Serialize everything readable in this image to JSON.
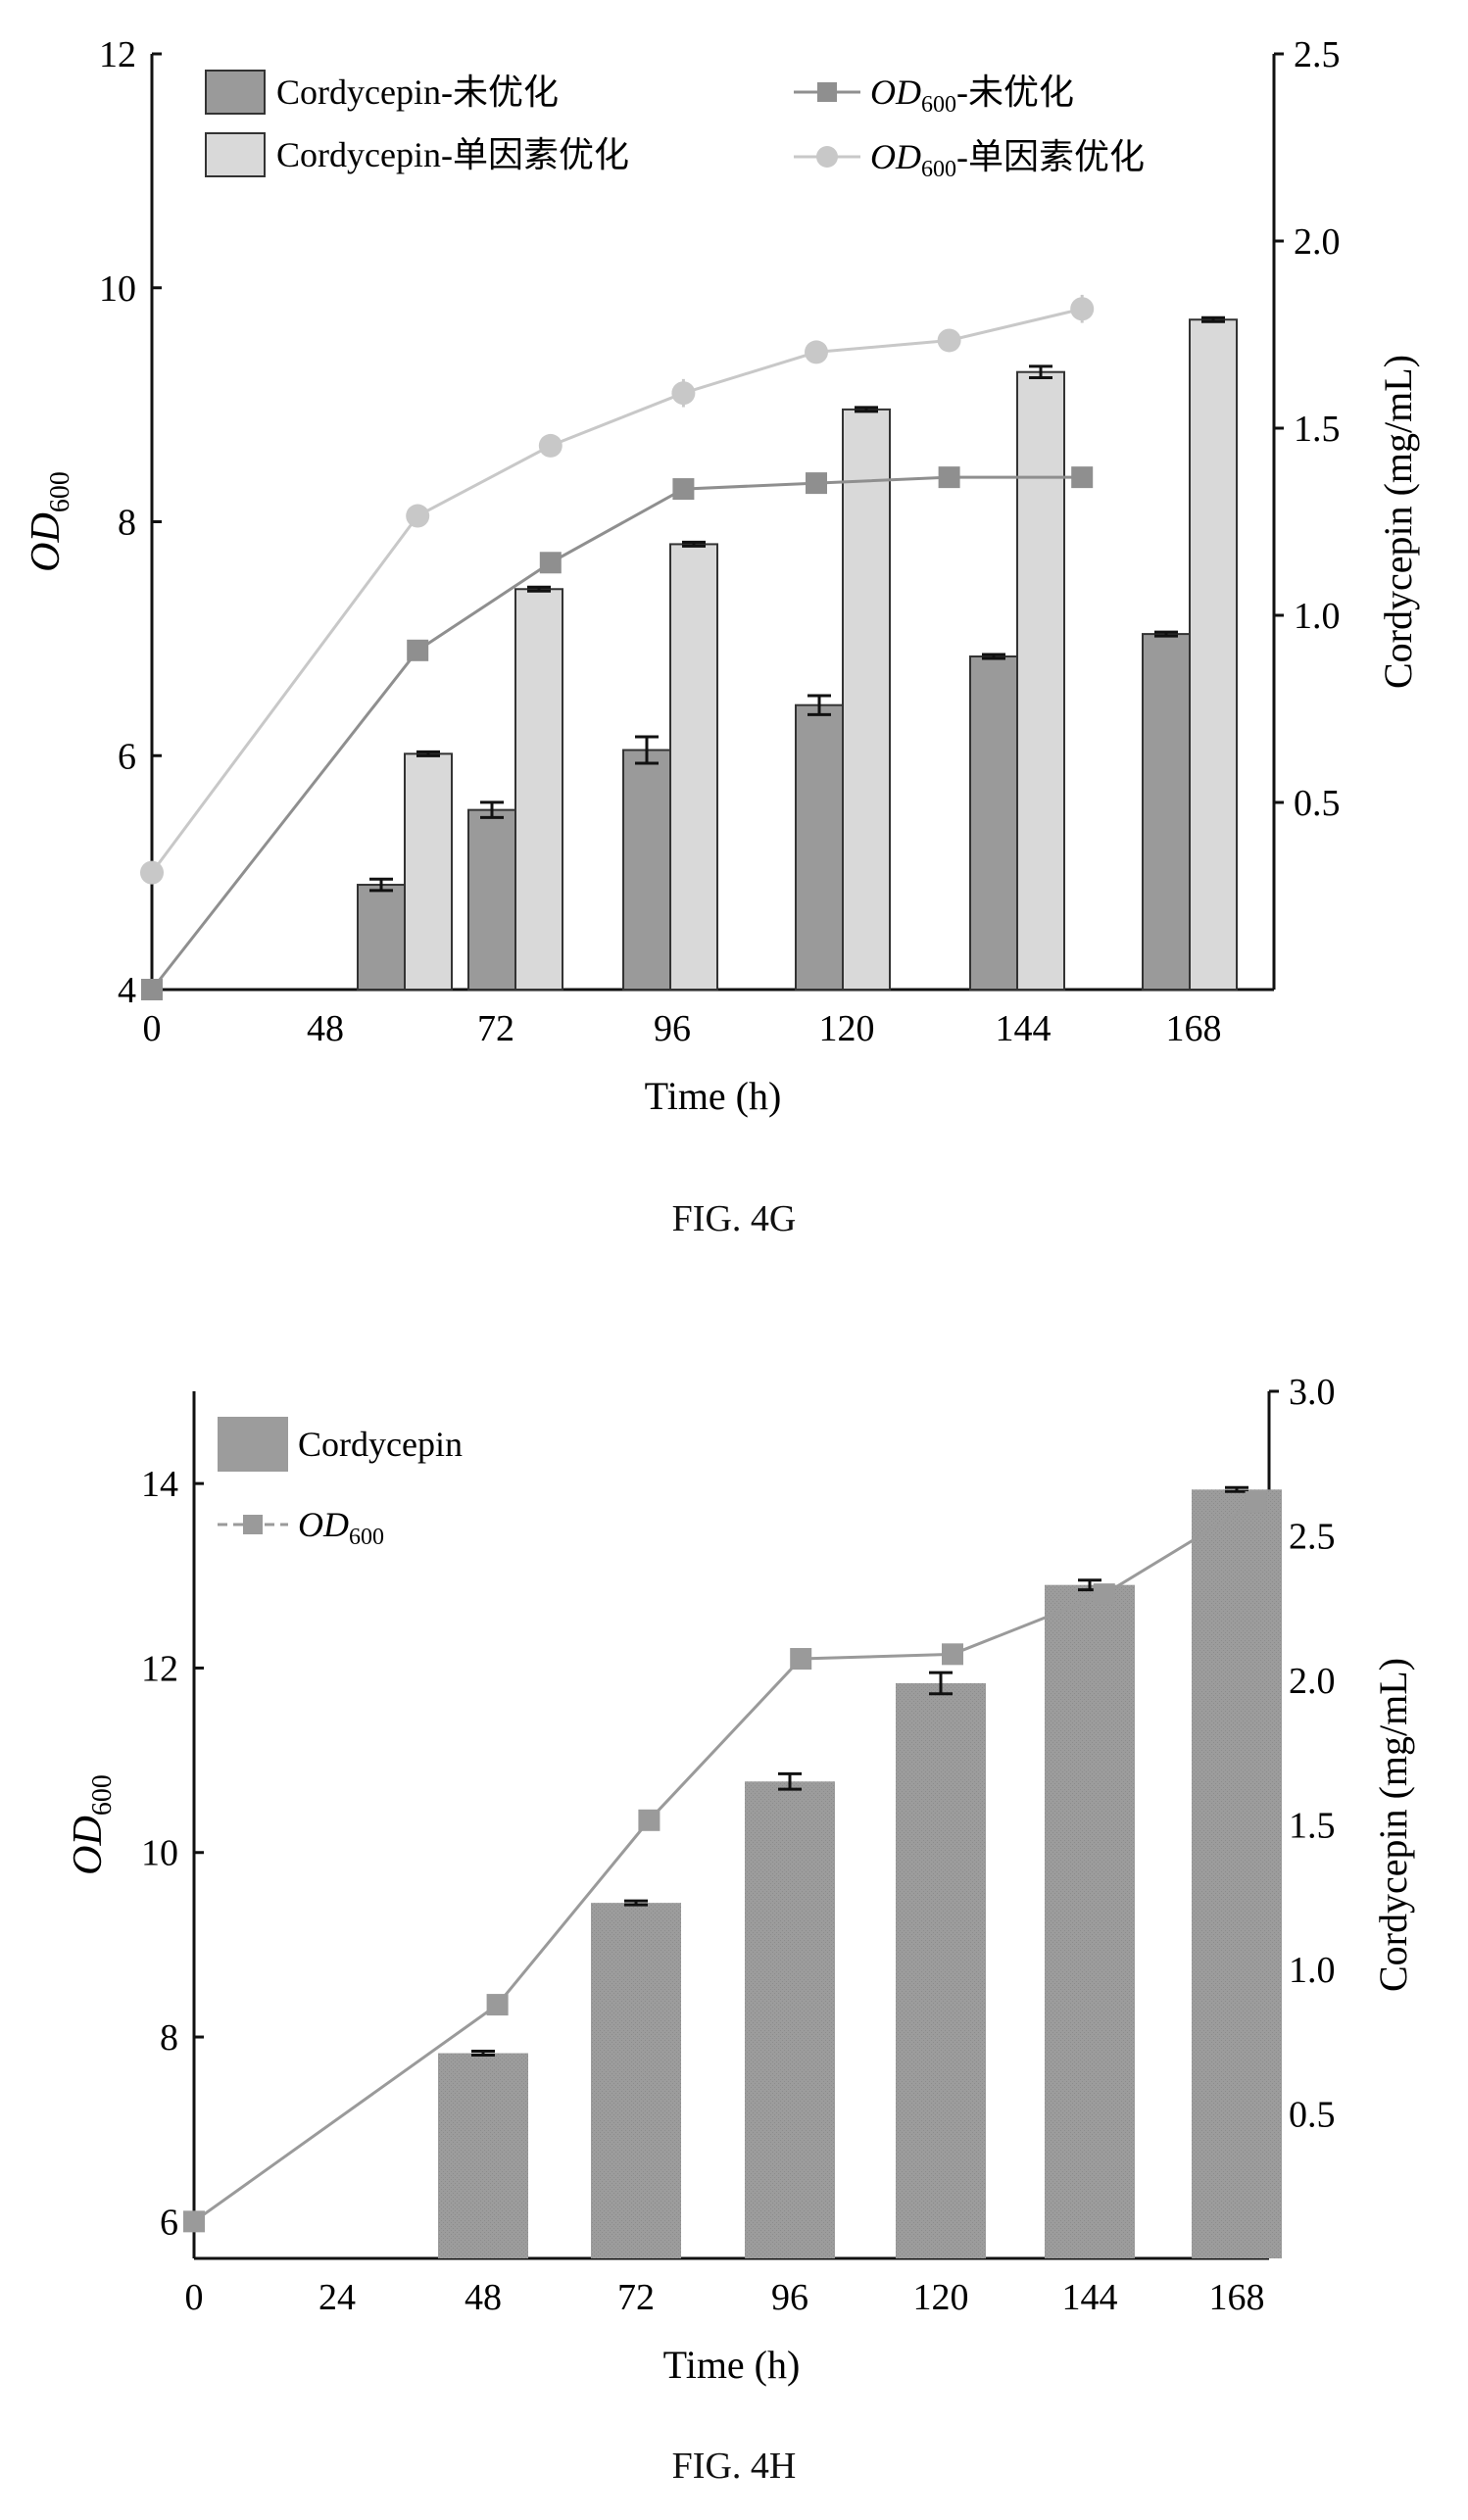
{
  "chart_data": [
    {
      "type": "bar",
      "caption": "FIG. 4G",
      "xlabel": "Time (h)",
      "ylabel_left": "OD600",
      "ylabel_right": "Cordycepin (mg/mL)",
      "x_ticks": [
        "0",
        "48",
        "72",
        "96",
        "120",
        "144",
        "168"
      ],
      "categories": [
        "48",
        "72",
        "96",
        "120",
        "144",
        "168"
      ],
      "ylim_left": [
        4,
        12
      ],
      "yticks_left": [
        4,
        6,
        8,
        10,
        12
      ],
      "ylim_right": [
        0,
        2.5
      ],
      "yticks_right": [
        "0.5",
        "1.0",
        "1.5",
        "2.0",
        "2.5"
      ],
      "bar_series": [
        {
          "name": "Cordycepin-未优化",
          "values": [
            0.28,
            0.48,
            0.64,
            0.76,
            0.89,
            0.95
          ],
          "errors": [
            0.01,
            0.015,
            0.03,
            0.02,
            0,
            0
          ],
          "color": "#9a9a9a"
        },
        {
          "name": "Cordycepin-单因素优化",
          "values": [
            0.63,
            1.07,
            1.19,
            1.55,
            1.65,
            1.79
          ],
          "errors": [
            0,
            0,
            0,
            0,
            0.01,
            0
          ],
          "color": "#d9d9d9"
        }
      ],
      "line_series": [
        {
          "name": "OD600-未优化",
          "x": [
            0,
            48,
            72,
            96,
            120,
            144,
            168
          ],
          "values": [
            4.0,
            6.9,
            7.65,
            8.28,
            8.33,
            8.38,
            8.38
          ],
          "marker": "square",
          "color": "#8f8f8f"
        },
        {
          "name": "OD600-单因素优化",
          "x": [
            0,
            48,
            72,
            96,
            120,
            144,
            168
          ],
          "values": [
            5.0,
            8.05,
            8.65,
            9.1,
            9.45,
            9.55,
            9.82
          ],
          "errors": [
            0,
            0,
            0,
            0.12,
            0,
            0,
            0.12
          ],
          "marker": "circle",
          "color": "#c8c8c8"
        }
      ],
      "legend": {
        "bar_prefix": "Cordycepin-",
        "od_main": "OD",
        "od_sub": "600",
        "suffix_unopt": "未优化",
        "suffix_opt": "单因素优化"
      }
    },
    {
      "type": "bar",
      "caption": "FIG. 4H",
      "xlabel": "Time (h)",
      "ylabel_left": "OD600",
      "ylabel_right": "Cordycepin (mg/mL)",
      "x_ticks": [
        "0",
        "24",
        "48",
        "72",
        "96",
        "120",
        "144",
        "168"
      ],
      "categories": [
        "48",
        "72",
        "96",
        "120",
        "144",
        "168"
      ],
      "ylim_left": [
        5.6,
        15
      ],
      "yticks_left": [
        6,
        8,
        10,
        12,
        14
      ],
      "ylim_right": [
        0,
        3.0
      ],
      "yticks_right": [
        "0.5",
        "1.0",
        "1.5",
        "2.0",
        "2.5",
        "3.0"
      ],
      "bar_series": [
        {
          "name": "Cordycepin",
          "values": [
            0.71,
            1.23,
            1.65,
            1.99,
            2.33,
            2.66
          ],
          "errors": [
            0,
            0,
            0.02,
            0.03,
            0.01,
            0
          ],
          "color": "#9c9c9c"
        }
      ],
      "line_series": [
        {
          "name": "OD600",
          "x": [
            0,
            48,
            72,
            96,
            120,
            144,
            168
          ],
          "values": [
            6.0,
            8.35,
            10.35,
            12.1,
            12.15,
            12.8,
            13.8
          ],
          "marker": "square",
          "color": "#9a9a9a"
        }
      ],
      "legend": {
        "bar_label": "Cordycepin",
        "od_main": "OD",
        "od_sub": "600"
      }
    }
  ]
}
